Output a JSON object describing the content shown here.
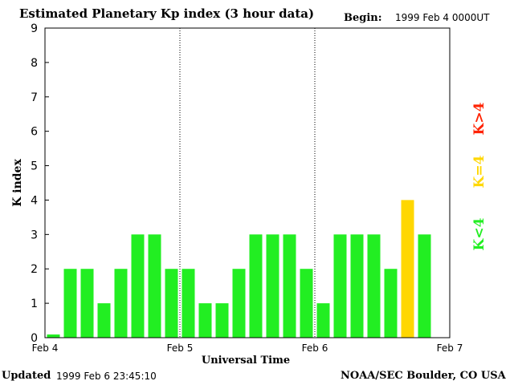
{
  "header": {
    "title": "Estimated Planetary Kp index (3 hour data)",
    "begin_label": "Begin:",
    "begin_value": "1999 Feb 4 0000UT"
  },
  "footer": {
    "updated_label": "Updated",
    "updated_value": "1999 Feb  6 23:45:10",
    "credit": "NOAA/SEC Boulder, CO USA"
  },
  "legend": [
    {
      "label": "K>4",
      "color": "#ff2200"
    },
    {
      "label": "K=4",
      "color": "#ffd700"
    },
    {
      "label": "K<4",
      "color": "#22ee22"
    }
  ],
  "chart_data": {
    "type": "bar",
    "xlabel": "Universal Time",
    "ylabel": "K index",
    "ylim": [
      0,
      9
    ],
    "yticks": [
      0,
      1,
      2,
      3,
      4,
      5,
      6,
      7,
      8,
      9
    ],
    "xtick_labels": [
      "Feb 4",
      "Feb 5",
      "Feb 6",
      "Feb 7"
    ],
    "day_separators": "dotted vertical lines at Feb 5 and Feb 6",
    "grid": false,
    "color_rule": {
      "below_4": "#22ee22",
      "equal_4": "#ffd700",
      "above_4": "#ff2200"
    },
    "values": [
      0,
      2,
      2,
      1,
      2,
      3,
      3,
      2,
      2,
      1,
      1,
      2,
      3,
      3,
      3,
      2,
      1,
      3,
      3,
      3,
      2,
      4,
      3
    ]
  }
}
